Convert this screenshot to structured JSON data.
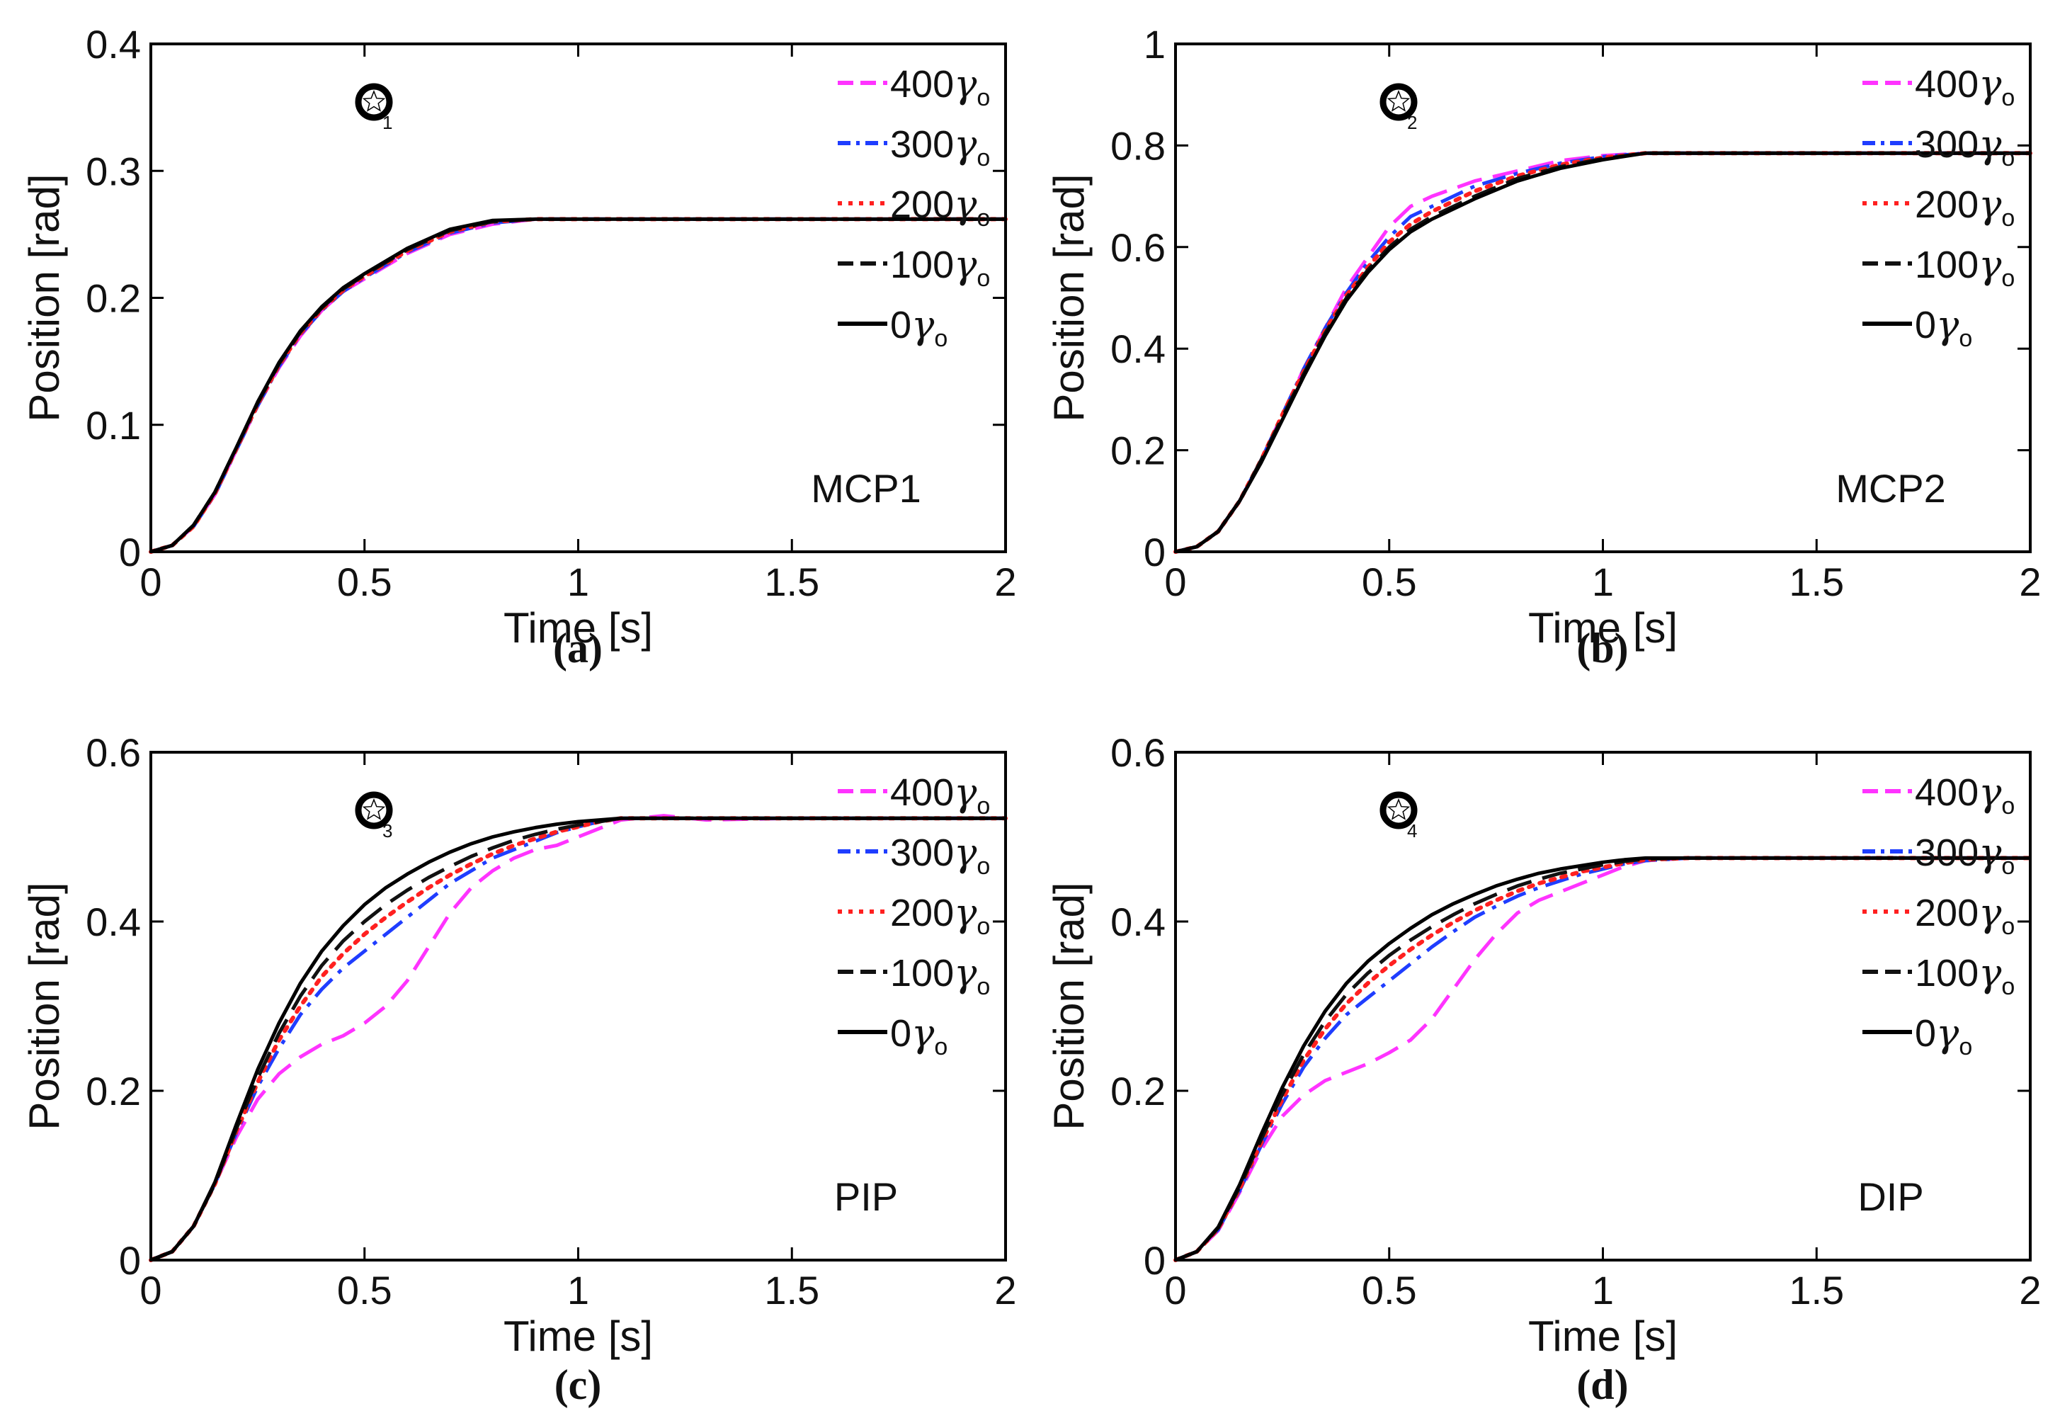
{
  "colors": {
    "400yc": "#ff33ff",
    "300yc": "#1f3dff",
    "200yc": "#ff2020",
    "100yc": "#111111",
    "0yc": "#000000",
    "axis": "#000000",
    "background": "#ffffff"
  },
  "legend_entries": [
    {
      "key": "400yc",
      "value": "400",
      "suffix": "γ",
      "sub": "o",
      "dash": "dash"
    },
    {
      "key": "300yc",
      "value": "300",
      "suffix": "γ",
      "sub": "o",
      "dash": "dashdot"
    },
    {
      "key": "200yc",
      "value": "200",
      "suffix": "γ",
      "sub": "o",
      "dash": "dot"
    },
    {
      "key": "100yc",
      "value": "100",
      "suffix": "γ",
      "sub": "o",
      "dash": "dash"
    },
    {
      "key": "0yc",
      "value": "0",
      "suffix": "γ",
      "sub": "o",
      "dash": "solid"
    }
  ],
  "chart_data": [
    {
      "type": "line",
      "id": "a",
      "caption": "(a)",
      "panel_label": "MCP1",
      "marker_sub": "1",
      "xlabel": "Time [s]",
      "ylabel": "Position [rad]",
      "xlim": [
        0,
        2
      ],
      "ylim": [
        0,
        0.4
      ],
      "xticks": [
        0,
        0.5,
        1,
        1.5,
        2
      ],
      "xtick_labels": [
        "0",
        "0.5",
        "1",
        "1.5",
        "2"
      ],
      "yticks": [
        0,
        0.1,
        0.2,
        0.3,
        0.4
      ],
      "ytick_labels": [
        "0",
        "0.1",
        "0.2",
        "0.3",
        "0.4"
      ],
      "x": [
        0,
        0.05,
        0.1,
        0.15,
        0.2,
        0.25,
        0.3,
        0.35,
        0.4,
        0.45,
        0.5,
        0.6,
        0.7,
        0.8,
        0.9,
        1.0,
        1.5,
        2.0
      ],
      "series": [
        {
          "name": "400yc",
          "values": [
            0,
            0.005,
            0.02,
            0.045,
            0.08,
            0.115,
            0.145,
            0.17,
            0.19,
            0.205,
            0.215,
            0.235,
            0.25,
            0.258,
            0.262,
            0.262,
            0.262,
            0.262
          ]
        },
        {
          "name": "300yc",
          "values": [
            0,
            0.005,
            0.02,
            0.045,
            0.08,
            0.115,
            0.146,
            0.171,
            0.19,
            0.205,
            0.216,
            0.236,
            0.251,
            0.259,
            0.262,
            0.262,
            0.262,
            0.262
          ]
        },
        {
          "name": "200yc",
          "values": [
            0,
            0.005,
            0.02,
            0.046,
            0.081,
            0.116,
            0.147,
            0.172,
            0.191,
            0.206,
            0.217,
            0.237,
            0.252,
            0.26,
            0.262,
            0.262,
            0.262,
            0.262
          ]
        },
        {
          "name": "100yc",
          "values": [
            0,
            0.005,
            0.021,
            0.047,
            0.082,
            0.117,
            0.148,
            0.173,
            0.192,
            0.207,
            0.218,
            0.238,
            0.253,
            0.26,
            0.262,
            0.262,
            0.262,
            0.262
          ]
        },
        {
          "name": "0yc",
          "values": [
            0,
            0.005,
            0.021,
            0.047,
            0.082,
            0.118,
            0.149,
            0.174,
            0.193,
            0.208,
            0.219,
            0.239,
            0.254,
            0.261,
            0.262,
            0.262,
            0.262,
            0.262
          ]
        }
      ]
    },
    {
      "type": "line",
      "id": "b",
      "caption": "(b)",
      "panel_label": "MCP2",
      "marker_sub": "2",
      "xlabel": "Time [s]",
      "ylabel": "Position [rad]",
      "xlim": [
        0,
        2
      ],
      "ylim": [
        0,
        1
      ],
      "xticks": [
        0,
        0.5,
        1,
        1.5,
        2
      ],
      "xtick_labels": [
        "0",
        "0.5",
        "1",
        "1.5",
        "2"
      ],
      "yticks": [
        0,
        0.2,
        0.4,
        0.6,
        0.8,
        1
      ],
      "ytick_labels": [
        "0",
        "0.2",
        "0.4",
        "0.6",
        "0.8",
        "1"
      ],
      "x": [
        0,
        0.05,
        0.1,
        0.15,
        0.2,
        0.25,
        0.3,
        0.35,
        0.4,
        0.45,
        0.5,
        0.55,
        0.6,
        0.7,
        0.8,
        0.9,
        1.0,
        1.1,
        1.5,
        2.0
      ],
      "series": [
        {
          "name": "400yc",
          "values": [
            0,
            0.01,
            0.04,
            0.1,
            0.18,
            0.27,
            0.36,
            0.44,
            0.52,
            0.58,
            0.64,
            0.68,
            0.7,
            0.73,
            0.75,
            0.77,
            0.78,
            0.785,
            0.785,
            0.785
          ]
        },
        {
          "name": "300yc",
          "values": [
            0,
            0.01,
            0.04,
            0.1,
            0.18,
            0.27,
            0.36,
            0.44,
            0.51,
            0.57,
            0.62,
            0.66,
            0.68,
            0.72,
            0.745,
            0.765,
            0.778,
            0.785,
            0.785,
            0.785
          ]
        },
        {
          "name": "200yc",
          "values": [
            0,
            0.01,
            0.04,
            0.1,
            0.18,
            0.27,
            0.355,
            0.435,
            0.505,
            0.56,
            0.61,
            0.645,
            0.67,
            0.71,
            0.74,
            0.762,
            0.776,
            0.785,
            0.785,
            0.785
          ]
        },
        {
          "name": "100yc",
          "values": [
            0,
            0.01,
            0.04,
            0.1,
            0.18,
            0.265,
            0.35,
            0.43,
            0.5,
            0.555,
            0.6,
            0.635,
            0.66,
            0.7,
            0.735,
            0.758,
            0.774,
            0.785,
            0.785,
            0.785
          ]
        },
        {
          "name": "0yc",
          "values": [
            0,
            0.01,
            0.04,
            0.1,
            0.175,
            0.26,
            0.345,
            0.425,
            0.495,
            0.55,
            0.595,
            0.63,
            0.655,
            0.695,
            0.73,
            0.755,
            0.772,
            0.785,
            0.785,
            0.785
          ]
        }
      ]
    },
    {
      "type": "line",
      "id": "c",
      "caption": "(c)",
      "panel_label": "PIP",
      "marker_sub": "3",
      "xlabel": "Time [s]",
      "ylabel": "Position [rad]",
      "xlim": [
        0,
        2
      ],
      "ylim": [
        0,
        0.6
      ],
      "xticks": [
        0,
        0.5,
        1,
        1.5,
        2
      ],
      "xtick_labels": [
        "0",
        "0.5",
        "1",
        "1.5",
        "2"
      ],
      "yticks": [
        0,
        0.2,
        0.4,
        0.6
      ],
      "ytick_labels": [
        "0",
        "0.2",
        "0.4",
        "0.6"
      ],
      "x": [
        0,
        0.05,
        0.1,
        0.15,
        0.2,
        0.25,
        0.3,
        0.35,
        0.4,
        0.45,
        0.5,
        0.55,
        0.6,
        0.65,
        0.7,
        0.75,
        0.8,
        0.85,
        0.9,
        0.95,
        1.0,
        1.05,
        1.1,
        1.2,
        1.3,
        1.5,
        2.0
      ],
      "series": [
        {
          "name": "400yc",
          "values": [
            0,
            0.01,
            0.04,
            0.09,
            0.145,
            0.19,
            0.22,
            0.24,
            0.255,
            0.265,
            0.28,
            0.3,
            0.33,
            0.37,
            0.41,
            0.44,
            0.46,
            0.475,
            0.485,
            0.49,
            0.5,
            0.51,
            0.52,
            0.525,
            0.52,
            0.522,
            0.522
          ]
        },
        {
          "name": "300yc",
          "values": [
            0,
            0.01,
            0.04,
            0.09,
            0.15,
            0.205,
            0.25,
            0.29,
            0.32,
            0.345,
            0.365,
            0.385,
            0.405,
            0.425,
            0.445,
            0.46,
            0.475,
            0.485,
            0.495,
            0.505,
            0.512,
            0.518,
            0.522,
            0.522,
            0.522,
            0.522,
            0.522
          ]
        },
        {
          "name": "200yc",
          "values": [
            0,
            0.01,
            0.04,
            0.09,
            0.152,
            0.21,
            0.26,
            0.3,
            0.335,
            0.362,
            0.385,
            0.405,
            0.423,
            0.44,
            0.455,
            0.468,
            0.48,
            0.49,
            0.498,
            0.506,
            0.512,
            0.518,
            0.522,
            0.522,
            0.522,
            0.522,
            0.522
          ]
        },
        {
          "name": "100yc",
          "values": [
            0,
            0.01,
            0.04,
            0.09,
            0.155,
            0.215,
            0.268,
            0.312,
            0.348,
            0.377,
            0.4,
            0.42,
            0.437,
            0.452,
            0.465,
            0.477,
            0.487,
            0.496,
            0.503,
            0.509,
            0.514,
            0.518,
            0.522,
            0.522,
            0.522,
            0.522,
            0.522
          ]
        },
        {
          "name": "0yc",
          "values": [
            0,
            0.01,
            0.04,
            0.092,
            0.16,
            0.225,
            0.28,
            0.327,
            0.365,
            0.395,
            0.42,
            0.44,
            0.456,
            0.47,
            0.482,
            0.492,
            0.5,
            0.506,
            0.511,
            0.515,
            0.518,
            0.52,
            0.522,
            0.522,
            0.522,
            0.522,
            0.522
          ]
        }
      ]
    },
    {
      "type": "line",
      "id": "d",
      "caption": "(d)",
      "panel_label": "DIP",
      "marker_sub": "4",
      "xlabel": "Time [s]",
      "ylabel": "Position [rad]",
      "xlim": [
        0,
        2
      ],
      "ylim": [
        0,
        0.6
      ],
      "xticks": [
        0,
        0.5,
        1,
        1.5,
        2
      ],
      "xtick_labels": [
        "0",
        "0.5",
        "1",
        "1.5",
        "2"
      ],
      "yticks": [
        0,
        0.2,
        0.4,
        0.6
      ],
      "ytick_labels": [
        "0",
        "0.2",
        "0.4",
        "0.6"
      ],
      "x": [
        0,
        0.05,
        0.1,
        0.15,
        0.2,
        0.25,
        0.3,
        0.35,
        0.4,
        0.45,
        0.5,
        0.55,
        0.6,
        0.65,
        0.7,
        0.75,
        0.8,
        0.85,
        0.9,
        0.95,
        1.0,
        1.05,
        1.1,
        1.2,
        1.5,
        2.0
      ],
      "series": [
        {
          "name": "400yc",
          "values": [
            0,
            0.01,
            0.035,
            0.08,
            0.13,
            0.17,
            0.195,
            0.212,
            0.222,
            0.232,
            0.245,
            0.26,
            0.285,
            0.32,
            0.355,
            0.385,
            0.41,
            0.425,
            0.435,
            0.445,
            0.455,
            0.465,
            0.472,
            0.475,
            0.475,
            0.475
          ]
        },
        {
          "name": "300yc",
          "values": [
            0,
            0.01,
            0.036,
            0.082,
            0.135,
            0.185,
            0.228,
            0.262,
            0.29,
            0.31,
            0.33,
            0.35,
            0.37,
            0.388,
            0.405,
            0.418,
            0.43,
            0.44,
            0.448,
            0.456,
            0.462,
            0.468,
            0.472,
            0.475,
            0.475,
            0.475
          ]
        },
        {
          "name": "200yc",
          "values": [
            0,
            0.01,
            0.037,
            0.084,
            0.138,
            0.19,
            0.236,
            0.273,
            0.303,
            0.327,
            0.348,
            0.367,
            0.384,
            0.399,
            0.413,
            0.425,
            0.436,
            0.445,
            0.452,
            0.459,
            0.464,
            0.469,
            0.473,
            0.475,
            0.475,
            0.475
          ]
        },
        {
          "name": "100yc",
          "values": [
            0,
            0.01,
            0.038,
            0.086,
            0.142,
            0.196,
            0.243,
            0.282,
            0.314,
            0.339,
            0.36,
            0.378,
            0.394,
            0.408,
            0.421,
            0.432,
            0.442,
            0.45,
            0.457,
            0.462,
            0.467,
            0.471,
            0.474,
            0.475,
            0.475,
            0.475
          ]
        },
        {
          "name": "0yc",
          "values": [
            0,
            0.01,
            0.039,
            0.089,
            0.148,
            0.204,
            0.253,
            0.294,
            0.327,
            0.353,
            0.374,
            0.392,
            0.408,
            0.421,
            0.432,
            0.442,
            0.45,
            0.457,
            0.462,
            0.466,
            0.47,
            0.473,
            0.475,
            0.475,
            0.475,
            0.475
          ]
        }
      ]
    }
  ]
}
